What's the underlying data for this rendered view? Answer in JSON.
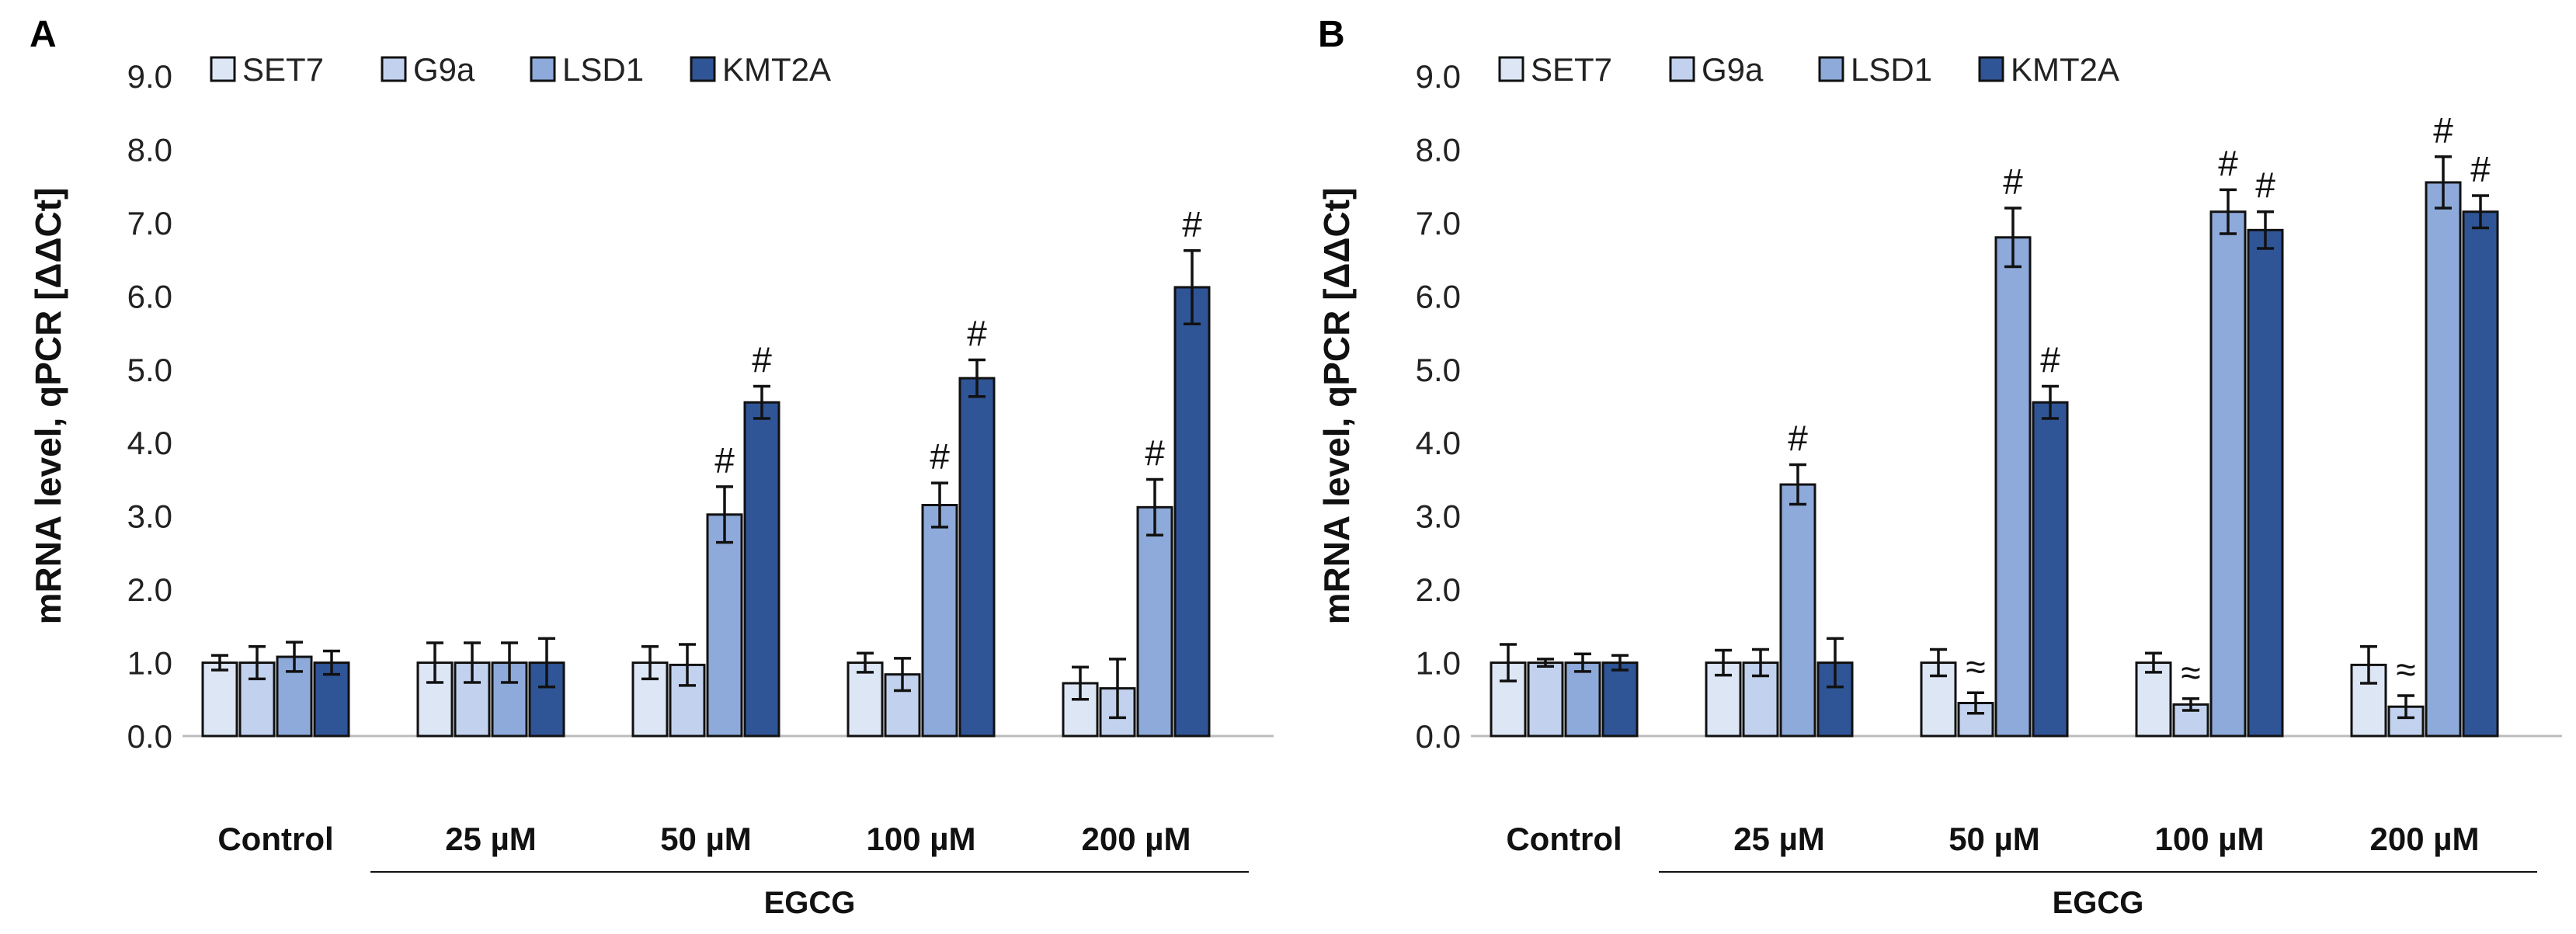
{
  "chart_data": [
    {
      "panel": "A",
      "type": "bar",
      "ylabel": "mRNA level, qPCR [ΔΔCt]",
      "xlabel": "",
      "group_label": "EGCG",
      "categories": [
        "Control",
        "25 µM",
        "50 µM",
        "100 µM",
        "200 µM"
      ],
      "ylim": [
        0,
        9
      ],
      "yticks": [
        "0.0",
        "1.0",
        "2.0",
        "3.0",
        "4.0",
        "5.0",
        "6.0",
        "7.0",
        "8.0",
        "9.0"
      ],
      "legend_position": "top-left",
      "series": [
        {
          "name": "SET7",
          "color": "#dde6f5",
          "values": [
            1.0,
            1.0,
            1.0,
            1.0,
            0.72
          ],
          "errors": [
            0.1,
            0.27,
            0.22,
            0.13,
            0.22
          ],
          "annotations": [
            "",
            "",
            "",
            "",
            ""
          ]
        },
        {
          "name": "G9a",
          "color": "#c2d2ee",
          "values": [
            1.0,
            1.0,
            0.97,
            0.84,
            0.65
          ],
          "errors": [
            0.22,
            0.27,
            0.28,
            0.22,
            0.4
          ],
          "annotations": [
            "",
            "",
            "",
            "",
            ""
          ]
        },
        {
          "name": "LSD1",
          "color": "#8eaadb",
          "values": [
            1.08,
            1.0,
            3.02,
            3.15,
            3.12
          ],
          "errors": [
            0.2,
            0.27,
            0.38,
            0.3,
            0.38
          ],
          "annotations": [
            "",
            "",
            "#",
            "#",
            "#"
          ]
        },
        {
          "name": "KMT2A",
          "color": "#2f5597",
          "values": [
            1.0,
            1.0,
            4.55,
            4.88,
            6.12
          ],
          "errors": [
            0.16,
            0.33,
            0.22,
            0.25,
            0.5
          ],
          "annotations": [
            "",
            "",
            "#",
            "#",
            "#"
          ]
        }
      ]
    },
    {
      "panel": "B",
      "type": "bar",
      "ylabel": "mRNA level, qPCR [ΔΔCt]",
      "xlabel": "",
      "group_label": "EGCG",
      "categories": [
        "Control",
        "25 µM",
        "50 µM",
        "100 µM",
        "200 µM"
      ],
      "ylim": [
        0,
        9
      ],
      "yticks": [
        "0.0",
        "1.0",
        "2.0",
        "3.0",
        "4.0",
        "5.0",
        "6.0",
        "7.0",
        "8.0",
        "9.0"
      ],
      "legend_position": "top-left",
      "series": [
        {
          "name": "SET7",
          "color": "#dde6f5",
          "values": [
            1.0,
            1.0,
            1.0,
            1.0,
            0.97
          ],
          "errors": [
            0.25,
            0.17,
            0.18,
            0.13,
            0.25
          ],
          "annotations": [
            "",
            "",
            "",
            "",
            ""
          ]
        },
        {
          "name": "G9a",
          "color": "#c2d2ee",
          "values": [
            1.0,
            1.0,
            0.45,
            0.43,
            0.4
          ],
          "errors": [
            0.05,
            0.18,
            0.14,
            0.08,
            0.15
          ],
          "annotations": [
            "",
            "",
            "≈",
            "≈",
            "≈"
          ]
        },
        {
          "name": "LSD1",
          "color": "#8eaadb",
          "values": [
            1.0,
            3.43,
            6.8,
            7.15,
            7.55
          ],
          "errors": [
            0.12,
            0.27,
            0.4,
            0.3,
            0.35
          ],
          "annotations": [
            "",
            "#",
            "#",
            "#",
            "#"
          ]
        },
        {
          "name": "KMT2A",
          "color": "#2f5597",
          "values": [
            1.0,
            1.0,
            4.55,
            6.9,
            7.15
          ],
          "errors": [
            0.1,
            0.33,
            0.22,
            0.25,
            0.22
          ],
          "annotations": [
            "",
            "",
            "#",
            "#",
            "#"
          ]
        }
      ]
    }
  ]
}
